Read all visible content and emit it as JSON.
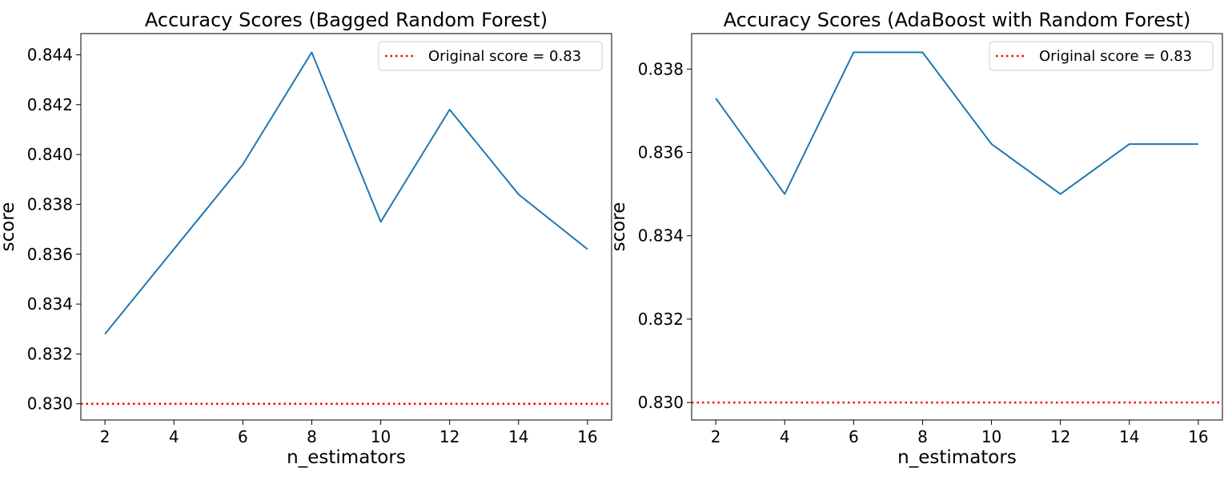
{
  "chart_data": [
    {
      "type": "line",
      "title": "Accuracy Scores (Bagged Random Forest)",
      "xlabel": "n_estimators",
      "ylabel": "score",
      "xlim": [
        1.3,
        16.7
      ],
      "ylim": [
        0.82935,
        0.84485
      ],
      "xticks": [
        "2",
        "4",
        "6",
        "8",
        "10",
        "12",
        "14",
        "16"
      ],
      "yticks": [
        "0.830",
        "0.832",
        "0.834",
        "0.836",
        "0.838",
        "0.840",
        "0.842",
        "0.844"
      ],
      "x": [
        2,
        4,
        6,
        8,
        10,
        12,
        14,
        16
      ],
      "series": [
        {
          "values": [
            0.8328,
            0.8362,
            0.8396,
            0.8441,
            0.8373,
            0.8418,
            0.8384,
            0.8362
          ],
          "color": "#1f77b4"
        }
      ],
      "reference_line": {
        "y": 0.83,
        "label": "Original score = 0.83",
        "color": "#ff0000",
        "style": "dotted"
      },
      "legend": "top-right",
      "grid": false
    },
    {
      "type": "line",
      "title": "Accuracy Scores (AdaBoost with Random Forest)",
      "xlabel": "n_estimators",
      "ylabel": "score",
      "xlim": [
        1.3,
        16.7
      ],
      "ylim": [
        0.82958,
        0.83885
      ],
      "xticks": [
        "2",
        "4",
        "6",
        "8",
        "10",
        "12",
        "14",
        "16"
      ],
      "yticks": [
        "0.830",
        "0.832",
        "0.834",
        "0.836",
        "0.838"
      ],
      "x": [
        2,
        4,
        6,
        8,
        10,
        12,
        14,
        16
      ],
      "series": [
        {
          "values": [
            0.8373,
            0.835,
            0.8384,
            0.8384,
            0.8362,
            0.835,
            0.8362,
            0.8362
          ],
          "color": "#1f77b4"
        }
      ],
      "reference_line": {
        "y": 0.83,
        "label": "Original score = 0.83",
        "color": "#ff0000",
        "style": "dotted"
      },
      "legend": "top-right",
      "grid": false
    }
  ]
}
